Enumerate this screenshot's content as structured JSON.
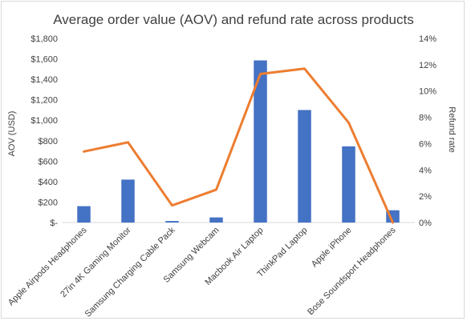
{
  "chart_data": {
    "type": "bar+line",
    "title": "Average order value (AOV) and refund rate across products",
    "categories": [
      "Apple Airpods Headphones",
      "27in 4K Gaming Monitor",
      "Samsung Charging Cable Pack",
      "Samsung Webcam",
      "Macbook Air Laptop",
      "ThinkPad Laptop",
      "Apple iPhone",
      "Bose Soundsport Headphones"
    ],
    "series": [
      {
        "type": "bar",
        "axis": "left",
        "color": "#4472c4",
        "values": [
          160,
          420,
          15,
          50,
          1585,
          1100,
          745,
          120
        ]
      },
      {
        "type": "line",
        "axis": "right",
        "color": "#ed7d31",
        "values": [
          5.4,
          6.1,
          1.3,
          2.5,
          11.3,
          11.7,
          7.6,
          0.0
        ]
      }
    ],
    "ylabel": "AOV (USD)",
    "y2label": "Refund rate",
    "ylim": [
      0,
      1800
    ],
    "y2lim": [
      0,
      14
    ],
    "yticks": [
      "$-",
      "$200",
      "$400",
      "$600",
      "$800",
      "$1,000",
      "$1,200",
      "$1,400",
      "$1,600",
      "$1,800"
    ],
    "y2ticks": [
      "0%",
      "2%",
      "4%",
      "6%",
      "8%",
      "10%",
      "12%",
      "14%"
    ],
    "grid": false,
    "legend": "none"
  }
}
